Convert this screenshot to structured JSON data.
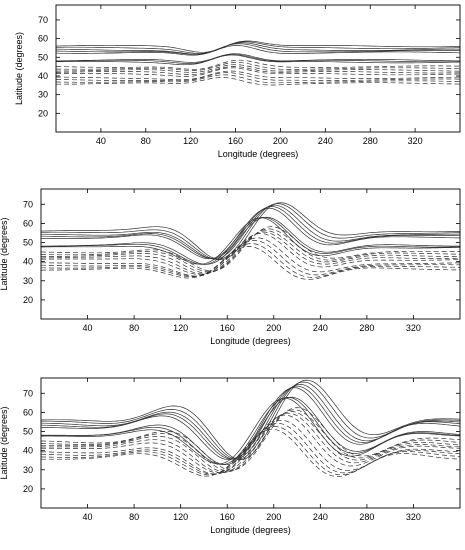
{
  "chart_data": [
    {
      "type": "line",
      "subtype": "contour",
      "panel": "top",
      "xlabel": "Longitude (degrees)",
      "ylabel": "Latitude (degrees)",
      "xlim": [
        0,
        360
      ],
      "ylim": [
        10,
        78
      ],
      "xticks": [
        40,
        80,
        120,
        160,
        200,
        240,
        280,
        320
      ],
      "yticks": [
        20,
        30,
        40,
        50,
        60,
        70
      ],
      "wave_center": 150,
      "wave_width": 35,
      "wave_amplitude": 4,
      "solid_levels": [
        56,
        55,
        54,
        53.3,
        52.5,
        48.5,
        48,
        47.4
      ],
      "dashed_levels": [
        45,
        44,
        43,
        42,
        41,
        39,
        38,
        37,
        36
      ]
    },
    {
      "type": "line",
      "subtype": "contour",
      "panel": "middle",
      "xlabel": "Longitude (degrees)",
      "ylabel": "Latitude (degrees)",
      "xlim": [
        0,
        360
      ],
      "ylim": [
        10,
        78
      ],
      "xticks": [
        40,
        80,
        120,
        160,
        200,
        240,
        280,
        320
      ],
      "yticks": [
        20,
        30,
        40,
        50,
        60,
        70
      ],
      "wave_center": 180,
      "wave_width": 60,
      "wave_amplitude": 15,
      "solid_levels": [
        56,
        55,
        54,
        53.3,
        52.5,
        48.5,
        48,
        47.4
      ],
      "dashed_levels": [
        45,
        44,
        43,
        42,
        41,
        39,
        38,
        37,
        36
      ]
    },
    {
      "type": "line",
      "subtype": "contour",
      "panel": "bottom",
      "xlabel": "Longitude (degrees)",
      "ylabel": "Latitude (degrees)",
      "xlim": [
        0,
        360
      ],
      "ylim": [
        10,
        78
      ],
      "xticks": [
        40,
        80,
        120,
        160,
        200,
        240,
        280,
        320
      ],
      "yticks": [
        20,
        30,
        40,
        50,
        60,
        70
      ],
      "wave_center": 200,
      "wave_width": 85,
      "wave_amplitude": 19,
      "solid_levels": [
        56,
        55,
        54,
        53.3,
        52.5,
        48.5,
        48,
        47.4
      ],
      "dashed_levels": [
        45,
        44,
        43,
        42,
        41,
        39,
        38,
        37,
        36
      ]
    }
  ]
}
